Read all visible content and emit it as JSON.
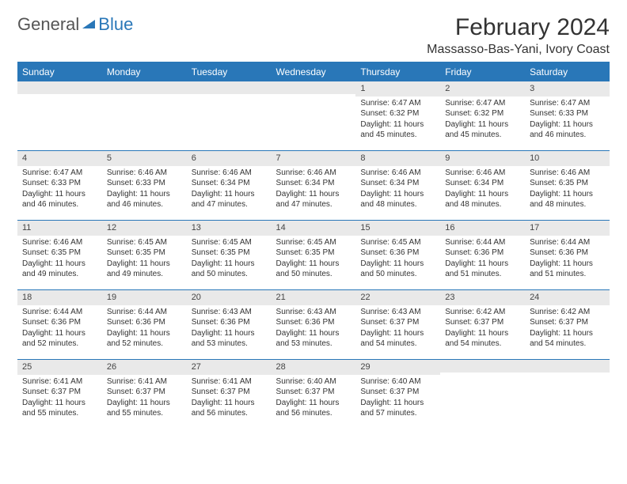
{
  "logo": {
    "text1": "General",
    "text2": "Blue"
  },
  "title": "February 2024",
  "location": "Massasso-Bas-Yani, Ivory Coast",
  "colors": {
    "brand": "#2977b8",
    "header_row_bg": "#2977b8",
    "header_row_text": "#ffffff",
    "day_num_bg": "#e9e9e9",
    "border": "#2977b8"
  },
  "weekdays": [
    "Sunday",
    "Monday",
    "Tuesday",
    "Wednesday",
    "Thursday",
    "Friday",
    "Saturday"
  ],
  "weeks": [
    [
      null,
      null,
      null,
      null,
      {
        "num": "1",
        "sunrise": "Sunrise: 6:47 AM",
        "sunset": "Sunset: 6:32 PM",
        "daylight1": "Daylight: 11 hours",
        "daylight2": "and 45 minutes."
      },
      {
        "num": "2",
        "sunrise": "Sunrise: 6:47 AM",
        "sunset": "Sunset: 6:32 PM",
        "daylight1": "Daylight: 11 hours",
        "daylight2": "and 45 minutes."
      },
      {
        "num": "3",
        "sunrise": "Sunrise: 6:47 AM",
        "sunset": "Sunset: 6:33 PM",
        "daylight1": "Daylight: 11 hours",
        "daylight2": "and 46 minutes."
      }
    ],
    [
      {
        "num": "4",
        "sunrise": "Sunrise: 6:47 AM",
        "sunset": "Sunset: 6:33 PM",
        "daylight1": "Daylight: 11 hours",
        "daylight2": "and 46 minutes."
      },
      {
        "num": "5",
        "sunrise": "Sunrise: 6:46 AM",
        "sunset": "Sunset: 6:33 PM",
        "daylight1": "Daylight: 11 hours",
        "daylight2": "and 46 minutes."
      },
      {
        "num": "6",
        "sunrise": "Sunrise: 6:46 AM",
        "sunset": "Sunset: 6:34 PM",
        "daylight1": "Daylight: 11 hours",
        "daylight2": "and 47 minutes."
      },
      {
        "num": "7",
        "sunrise": "Sunrise: 6:46 AM",
        "sunset": "Sunset: 6:34 PM",
        "daylight1": "Daylight: 11 hours",
        "daylight2": "and 47 minutes."
      },
      {
        "num": "8",
        "sunrise": "Sunrise: 6:46 AM",
        "sunset": "Sunset: 6:34 PM",
        "daylight1": "Daylight: 11 hours",
        "daylight2": "and 48 minutes."
      },
      {
        "num": "9",
        "sunrise": "Sunrise: 6:46 AM",
        "sunset": "Sunset: 6:34 PM",
        "daylight1": "Daylight: 11 hours",
        "daylight2": "and 48 minutes."
      },
      {
        "num": "10",
        "sunrise": "Sunrise: 6:46 AM",
        "sunset": "Sunset: 6:35 PM",
        "daylight1": "Daylight: 11 hours",
        "daylight2": "and 48 minutes."
      }
    ],
    [
      {
        "num": "11",
        "sunrise": "Sunrise: 6:46 AM",
        "sunset": "Sunset: 6:35 PM",
        "daylight1": "Daylight: 11 hours",
        "daylight2": "and 49 minutes."
      },
      {
        "num": "12",
        "sunrise": "Sunrise: 6:45 AM",
        "sunset": "Sunset: 6:35 PM",
        "daylight1": "Daylight: 11 hours",
        "daylight2": "and 49 minutes."
      },
      {
        "num": "13",
        "sunrise": "Sunrise: 6:45 AM",
        "sunset": "Sunset: 6:35 PM",
        "daylight1": "Daylight: 11 hours",
        "daylight2": "and 50 minutes."
      },
      {
        "num": "14",
        "sunrise": "Sunrise: 6:45 AM",
        "sunset": "Sunset: 6:35 PM",
        "daylight1": "Daylight: 11 hours",
        "daylight2": "and 50 minutes."
      },
      {
        "num": "15",
        "sunrise": "Sunrise: 6:45 AM",
        "sunset": "Sunset: 6:36 PM",
        "daylight1": "Daylight: 11 hours",
        "daylight2": "and 50 minutes."
      },
      {
        "num": "16",
        "sunrise": "Sunrise: 6:44 AM",
        "sunset": "Sunset: 6:36 PM",
        "daylight1": "Daylight: 11 hours",
        "daylight2": "and 51 minutes."
      },
      {
        "num": "17",
        "sunrise": "Sunrise: 6:44 AM",
        "sunset": "Sunset: 6:36 PM",
        "daylight1": "Daylight: 11 hours",
        "daylight2": "and 51 minutes."
      }
    ],
    [
      {
        "num": "18",
        "sunrise": "Sunrise: 6:44 AM",
        "sunset": "Sunset: 6:36 PM",
        "daylight1": "Daylight: 11 hours",
        "daylight2": "and 52 minutes."
      },
      {
        "num": "19",
        "sunrise": "Sunrise: 6:44 AM",
        "sunset": "Sunset: 6:36 PM",
        "daylight1": "Daylight: 11 hours",
        "daylight2": "and 52 minutes."
      },
      {
        "num": "20",
        "sunrise": "Sunrise: 6:43 AM",
        "sunset": "Sunset: 6:36 PM",
        "daylight1": "Daylight: 11 hours",
        "daylight2": "and 53 minutes."
      },
      {
        "num": "21",
        "sunrise": "Sunrise: 6:43 AM",
        "sunset": "Sunset: 6:36 PM",
        "daylight1": "Daylight: 11 hours",
        "daylight2": "and 53 minutes."
      },
      {
        "num": "22",
        "sunrise": "Sunrise: 6:43 AM",
        "sunset": "Sunset: 6:37 PM",
        "daylight1": "Daylight: 11 hours",
        "daylight2": "and 54 minutes."
      },
      {
        "num": "23",
        "sunrise": "Sunrise: 6:42 AM",
        "sunset": "Sunset: 6:37 PM",
        "daylight1": "Daylight: 11 hours",
        "daylight2": "and 54 minutes."
      },
      {
        "num": "24",
        "sunrise": "Sunrise: 6:42 AM",
        "sunset": "Sunset: 6:37 PM",
        "daylight1": "Daylight: 11 hours",
        "daylight2": "and 54 minutes."
      }
    ],
    [
      {
        "num": "25",
        "sunrise": "Sunrise: 6:41 AM",
        "sunset": "Sunset: 6:37 PM",
        "daylight1": "Daylight: 11 hours",
        "daylight2": "and 55 minutes."
      },
      {
        "num": "26",
        "sunrise": "Sunrise: 6:41 AM",
        "sunset": "Sunset: 6:37 PM",
        "daylight1": "Daylight: 11 hours",
        "daylight2": "and 55 minutes."
      },
      {
        "num": "27",
        "sunrise": "Sunrise: 6:41 AM",
        "sunset": "Sunset: 6:37 PM",
        "daylight1": "Daylight: 11 hours",
        "daylight2": "and 56 minutes."
      },
      {
        "num": "28",
        "sunrise": "Sunrise: 6:40 AM",
        "sunset": "Sunset: 6:37 PM",
        "daylight1": "Daylight: 11 hours",
        "daylight2": "and 56 minutes."
      },
      {
        "num": "29",
        "sunrise": "Sunrise: 6:40 AM",
        "sunset": "Sunset: 6:37 PM",
        "daylight1": "Daylight: 11 hours",
        "daylight2": "and 57 minutes."
      },
      null,
      null
    ]
  ]
}
